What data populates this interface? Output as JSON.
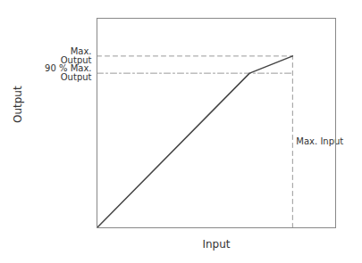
{
  "chart_data": {
    "type": "line",
    "x": [
      0,
      0.78,
      1.0
    ],
    "values": [
      0,
      0.9,
      1.0
    ],
    "color": "#444444",
    "xlabel": "Input",
    "ylabel": "Output",
    "xlim": [
      0,
      1.22
    ],
    "ylim": [
      0,
      1.22
    ],
    "tick_labels": false,
    "reference_lines": [
      {
        "x": [
          0,
          1.0
        ],
        "y": [
          1.0,
          1.0
        ],
        "line_style": "dashed",
        "color": "#999999",
        "label": "Max.\nOutput"
      },
      {
        "x": [
          0,
          1.0
        ],
        "y": [
          0.9,
          0.9
        ],
        "line_style": "dashdot",
        "color": "#999999",
        "label": "90 % Max.\nOutput"
      },
      {
        "x": [
          1.0,
          1.0
        ],
        "y": [
          0,
          1.0
        ],
        "line_style": "dashed",
        "color": "#999999",
        "label": "Max. Input"
      }
    ]
  }
}
